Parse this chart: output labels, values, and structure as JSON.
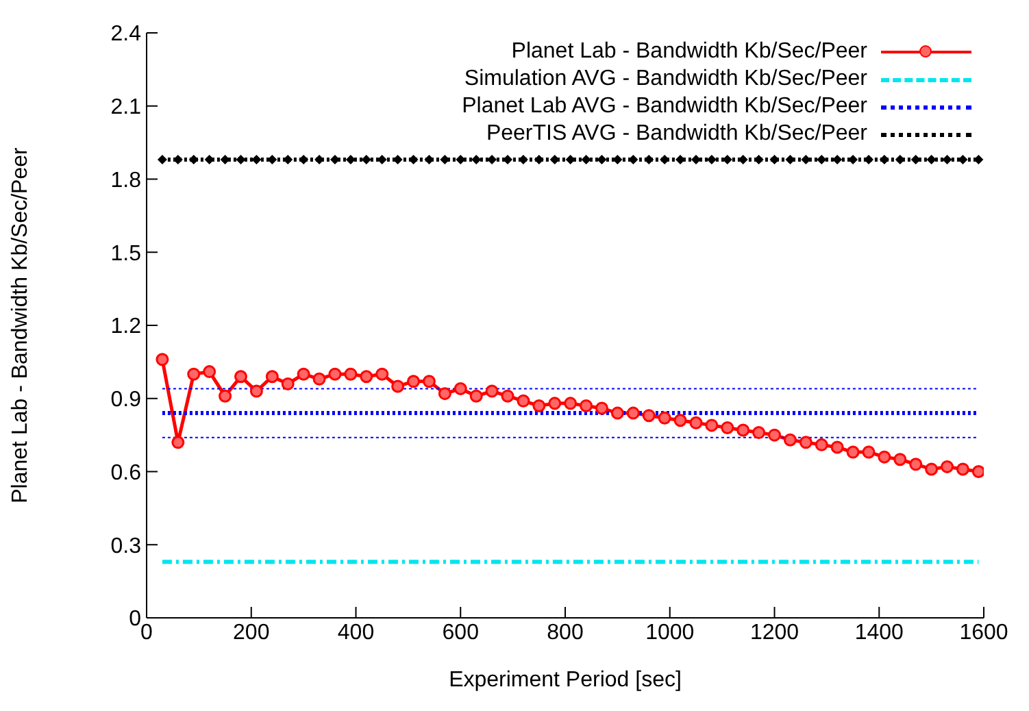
{
  "chart_data": {
    "type": "line",
    "xlabel": "Experiment Period [sec]",
    "ylabel": "Planet Lab - Bandwidth Kb/Sec/Peer",
    "xlim": [
      0,
      1600
    ],
    "xticks": [
      0,
      200,
      400,
      600,
      800,
      1000,
      1200,
      1400,
      1600
    ],
    "ylim": [
      0,
      2.4
    ],
    "yticks": [
      0,
      0.3,
      0.6,
      0.9,
      1.2,
      1.5,
      1.8,
      2.1,
      2.4
    ],
    "grid": false,
    "legend": "top right",
    "x": [
      30,
      60,
      90,
      120,
      150,
      180,
      210,
      240,
      270,
      300,
      330,
      360,
      390,
      420,
      450,
      480,
      510,
      540,
      570,
      600,
      630,
      660,
      690,
      720,
      750,
      780,
      810,
      840,
      870,
      900,
      930,
      960,
      990,
      1020,
      1050,
      1080,
      1110,
      1140,
      1170,
      1200,
      1230,
      1260,
      1290,
      1320,
      1350,
      1380,
      1410,
      1440,
      1470,
      1500,
      1530,
      1560,
      1590
    ],
    "series": [
      {
        "name": "Planet Lab - Bandwidth Kb/Sec/Peer",
        "color": "#ff0000",
        "marker": "circle",
        "line_style": "solid",
        "values": [
          1.06,
          0.72,
          1.0,
          1.01,
          0.91,
          0.99,
          0.93,
          0.99,
          0.96,
          1.0,
          0.98,
          1.0,
          1.0,
          0.99,
          1.0,
          0.95,
          0.97,
          0.97,
          0.92,
          0.94,
          0.91,
          0.93,
          0.91,
          0.89,
          0.87,
          0.88,
          0.88,
          0.87,
          0.86,
          0.84,
          0.84,
          0.83,
          0.82,
          0.81,
          0.8,
          0.79,
          0.78,
          0.77,
          0.76,
          0.75,
          0.73,
          0.72,
          0.71,
          0.7,
          0.68,
          0.68,
          0.66,
          0.65,
          0.63,
          0.61,
          0.62,
          0.61,
          0.6
        ]
      },
      {
        "name": "Simulation AVG - Bandwidth Kb/Sec/Peer",
        "color": "#00e5ee",
        "marker": "none",
        "line_style": "dashed",
        "values": [
          0.23,
          0.23,
          0.23,
          0.23,
          0.23,
          0.23,
          0.23,
          0.23,
          0.23,
          0.23,
          0.23,
          0.23,
          0.23,
          0.23,
          0.23,
          0.23,
          0.23,
          0.23,
          0.23,
          0.23,
          0.23,
          0.23,
          0.23,
          0.23,
          0.23,
          0.23,
          0.23,
          0.23,
          0.23,
          0.23,
          0.23,
          0.23,
          0.23,
          0.23,
          0.23,
          0.23,
          0.23,
          0.23,
          0.23,
          0.23,
          0.23,
          0.23,
          0.23,
          0.23,
          0.23,
          0.23,
          0.23,
          0.23,
          0.23,
          0.23,
          0.23,
          0.23,
          0.23
        ]
      },
      {
        "name": "Planet Lab AVG - Bandwidth Kb/Sec/Peer",
        "color": "#0000ff",
        "marker": "none",
        "line_style": "dotted",
        "values": [
          0.84,
          0.84,
          0.84,
          0.84,
          0.84,
          0.84,
          0.84,
          0.84,
          0.84,
          0.84,
          0.84,
          0.84,
          0.84,
          0.84,
          0.84,
          0.84,
          0.84,
          0.84,
          0.84,
          0.84,
          0.84,
          0.84,
          0.84,
          0.84,
          0.84,
          0.84,
          0.84,
          0.84,
          0.84,
          0.84,
          0.84,
          0.84,
          0.84,
          0.84,
          0.84,
          0.84,
          0.84,
          0.84,
          0.84,
          0.84,
          0.84,
          0.84,
          0.84,
          0.84,
          0.84,
          0.84,
          0.84,
          0.84,
          0.84,
          0.84,
          0.84,
          0.84,
          0.84
        ]
      },
      {
        "color": "#0000ff",
        "marker": "none",
        "line_style": "dotted",
        "values": [
          0.94,
          0.94,
          0.94,
          0.94,
          0.94,
          0.94,
          0.94,
          0.94,
          0.94,
          0.94,
          0.94,
          0.94,
          0.94,
          0.94,
          0.94,
          0.94,
          0.94,
          0.94,
          0.94,
          0.94,
          0.94,
          0.94,
          0.94,
          0.94,
          0.94,
          0.94,
          0.94,
          0.94,
          0.94,
          0.94,
          0.94,
          0.94,
          0.94,
          0.94,
          0.94,
          0.94,
          0.94,
          0.94,
          0.94,
          0.94,
          0.94,
          0.94,
          0.94,
          0.94,
          0.94,
          0.94,
          0.94,
          0.94,
          0.94,
          0.94,
          0.94,
          0.94,
          0.94
        ]
      },
      {
        "color": "#0000ff",
        "marker": "none",
        "line_style": "dotted",
        "values": [
          0.74,
          0.74,
          0.74,
          0.74,
          0.74,
          0.74,
          0.74,
          0.74,
          0.74,
          0.74,
          0.74,
          0.74,
          0.74,
          0.74,
          0.74,
          0.74,
          0.74,
          0.74,
          0.74,
          0.74,
          0.74,
          0.74,
          0.74,
          0.74,
          0.74,
          0.74,
          0.74,
          0.74,
          0.74,
          0.74,
          0.74,
          0.74,
          0.74,
          0.74,
          0.74,
          0.74,
          0.74,
          0.74,
          0.74,
          0.74,
          0.74,
          0.74,
          0.74,
          0.74,
          0.74,
          0.74,
          0.74,
          0.74,
          0.74,
          0.74,
          0.74,
          0.74,
          0.74
        ]
      },
      {
        "name": "PeerTIS AVG - Bandwidth Kb/Sec/Peer",
        "color": "#000000",
        "marker": "diamond",
        "line_style": "dotted",
        "values": [
          1.88,
          1.88,
          1.88,
          1.88,
          1.88,
          1.88,
          1.88,
          1.88,
          1.88,
          1.88,
          1.88,
          1.88,
          1.88,
          1.88,
          1.88,
          1.88,
          1.88,
          1.88,
          1.88,
          1.88,
          1.88,
          1.88,
          1.88,
          1.88,
          1.88,
          1.88,
          1.88,
          1.88,
          1.88,
          1.88,
          1.88,
          1.88,
          1.88,
          1.88,
          1.88,
          1.88,
          1.88,
          1.88,
          1.88,
          1.88,
          1.88,
          1.88,
          1.88,
          1.88,
          1.88,
          1.88,
          1.88,
          1.88,
          1.88,
          1.88,
          1.88,
          1.88,
          1.88
        ]
      }
    ]
  }
}
